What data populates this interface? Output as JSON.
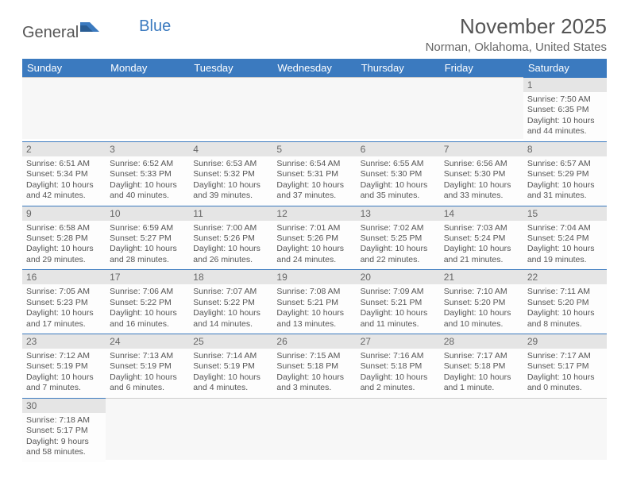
{
  "logo": {
    "part1": "General",
    "part2": "Blue"
  },
  "title": "November 2025",
  "location": "Norman, Oklahoma, United States",
  "colors": {
    "header_bg": "#3b7abf",
    "header_text": "#ffffff",
    "border": "#3b7abf",
    "daynum_bg": "#e5e5e5",
    "body_bg": "#fdfdfd",
    "text": "#555555"
  },
  "weekdays": [
    "Sunday",
    "Monday",
    "Tuesday",
    "Wednesday",
    "Thursday",
    "Friday",
    "Saturday"
  ],
  "weeks": [
    [
      null,
      null,
      null,
      null,
      null,
      null,
      {
        "n": "1",
        "sr": "Sunrise: 7:50 AM",
        "ss": "Sunset: 6:35 PM",
        "d1": "Daylight: 10 hours",
        "d2": "and 44 minutes."
      }
    ],
    [
      {
        "n": "2",
        "sr": "Sunrise: 6:51 AM",
        "ss": "Sunset: 5:34 PM",
        "d1": "Daylight: 10 hours",
        "d2": "and 42 minutes."
      },
      {
        "n": "3",
        "sr": "Sunrise: 6:52 AM",
        "ss": "Sunset: 5:33 PM",
        "d1": "Daylight: 10 hours",
        "d2": "and 40 minutes."
      },
      {
        "n": "4",
        "sr": "Sunrise: 6:53 AM",
        "ss": "Sunset: 5:32 PM",
        "d1": "Daylight: 10 hours",
        "d2": "and 39 minutes."
      },
      {
        "n": "5",
        "sr": "Sunrise: 6:54 AM",
        "ss": "Sunset: 5:31 PM",
        "d1": "Daylight: 10 hours",
        "d2": "and 37 minutes."
      },
      {
        "n": "6",
        "sr": "Sunrise: 6:55 AM",
        "ss": "Sunset: 5:30 PM",
        "d1": "Daylight: 10 hours",
        "d2": "and 35 minutes."
      },
      {
        "n": "7",
        "sr": "Sunrise: 6:56 AM",
        "ss": "Sunset: 5:30 PM",
        "d1": "Daylight: 10 hours",
        "d2": "and 33 minutes."
      },
      {
        "n": "8",
        "sr": "Sunrise: 6:57 AM",
        "ss": "Sunset: 5:29 PM",
        "d1": "Daylight: 10 hours",
        "d2": "and 31 minutes."
      }
    ],
    [
      {
        "n": "9",
        "sr": "Sunrise: 6:58 AM",
        "ss": "Sunset: 5:28 PM",
        "d1": "Daylight: 10 hours",
        "d2": "and 29 minutes."
      },
      {
        "n": "10",
        "sr": "Sunrise: 6:59 AM",
        "ss": "Sunset: 5:27 PM",
        "d1": "Daylight: 10 hours",
        "d2": "and 28 minutes."
      },
      {
        "n": "11",
        "sr": "Sunrise: 7:00 AM",
        "ss": "Sunset: 5:26 PM",
        "d1": "Daylight: 10 hours",
        "d2": "and 26 minutes."
      },
      {
        "n": "12",
        "sr": "Sunrise: 7:01 AM",
        "ss": "Sunset: 5:26 PM",
        "d1": "Daylight: 10 hours",
        "d2": "and 24 minutes."
      },
      {
        "n": "13",
        "sr": "Sunrise: 7:02 AM",
        "ss": "Sunset: 5:25 PM",
        "d1": "Daylight: 10 hours",
        "d2": "and 22 minutes."
      },
      {
        "n": "14",
        "sr": "Sunrise: 7:03 AM",
        "ss": "Sunset: 5:24 PM",
        "d1": "Daylight: 10 hours",
        "d2": "and 21 minutes."
      },
      {
        "n": "15",
        "sr": "Sunrise: 7:04 AM",
        "ss": "Sunset: 5:24 PM",
        "d1": "Daylight: 10 hours",
        "d2": "and 19 minutes."
      }
    ],
    [
      {
        "n": "16",
        "sr": "Sunrise: 7:05 AM",
        "ss": "Sunset: 5:23 PM",
        "d1": "Daylight: 10 hours",
        "d2": "and 17 minutes."
      },
      {
        "n": "17",
        "sr": "Sunrise: 7:06 AM",
        "ss": "Sunset: 5:22 PM",
        "d1": "Daylight: 10 hours",
        "d2": "and 16 minutes."
      },
      {
        "n": "18",
        "sr": "Sunrise: 7:07 AM",
        "ss": "Sunset: 5:22 PM",
        "d1": "Daylight: 10 hours",
        "d2": "and 14 minutes."
      },
      {
        "n": "19",
        "sr": "Sunrise: 7:08 AM",
        "ss": "Sunset: 5:21 PM",
        "d1": "Daylight: 10 hours",
        "d2": "and 13 minutes."
      },
      {
        "n": "20",
        "sr": "Sunrise: 7:09 AM",
        "ss": "Sunset: 5:21 PM",
        "d1": "Daylight: 10 hours",
        "d2": "and 11 minutes."
      },
      {
        "n": "21",
        "sr": "Sunrise: 7:10 AM",
        "ss": "Sunset: 5:20 PM",
        "d1": "Daylight: 10 hours",
        "d2": "and 10 minutes."
      },
      {
        "n": "22",
        "sr": "Sunrise: 7:11 AM",
        "ss": "Sunset: 5:20 PM",
        "d1": "Daylight: 10 hours",
        "d2": "and 8 minutes."
      }
    ],
    [
      {
        "n": "23",
        "sr": "Sunrise: 7:12 AM",
        "ss": "Sunset: 5:19 PM",
        "d1": "Daylight: 10 hours",
        "d2": "and 7 minutes."
      },
      {
        "n": "24",
        "sr": "Sunrise: 7:13 AM",
        "ss": "Sunset: 5:19 PM",
        "d1": "Daylight: 10 hours",
        "d2": "and 6 minutes."
      },
      {
        "n": "25",
        "sr": "Sunrise: 7:14 AM",
        "ss": "Sunset: 5:19 PM",
        "d1": "Daylight: 10 hours",
        "d2": "and 4 minutes."
      },
      {
        "n": "26",
        "sr": "Sunrise: 7:15 AM",
        "ss": "Sunset: 5:18 PM",
        "d1": "Daylight: 10 hours",
        "d2": "and 3 minutes."
      },
      {
        "n": "27",
        "sr": "Sunrise: 7:16 AM",
        "ss": "Sunset: 5:18 PM",
        "d1": "Daylight: 10 hours",
        "d2": "and 2 minutes."
      },
      {
        "n": "28",
        "sr": "Sunrise: 7:17 AM",
        "ss": "Sunset: 5:18 PM",
        "d1": "Daylight: 10 hours",
        "d2": "and 1 minute."
      },
      {
        "n": "29",
        "sr": "Sunrise: 7:17 AM",
        "ss": "Sunset: 5:17 PM",
        "d1": "Daylight: 10 hours",
        "d2": "and 0 minutes."
      }
    ],
    [
      {
        "n": "30",
        "sr": "Sunrise: 7:18 AM",
        "ss": "Sunset: 5:17 PM",
        "d1": "Daylight: 9 hours",
        "d2": "and 58 minutes."
      },
      null,
      null,
      null,
      null,
      null,
      null
    ]
  ]
}
